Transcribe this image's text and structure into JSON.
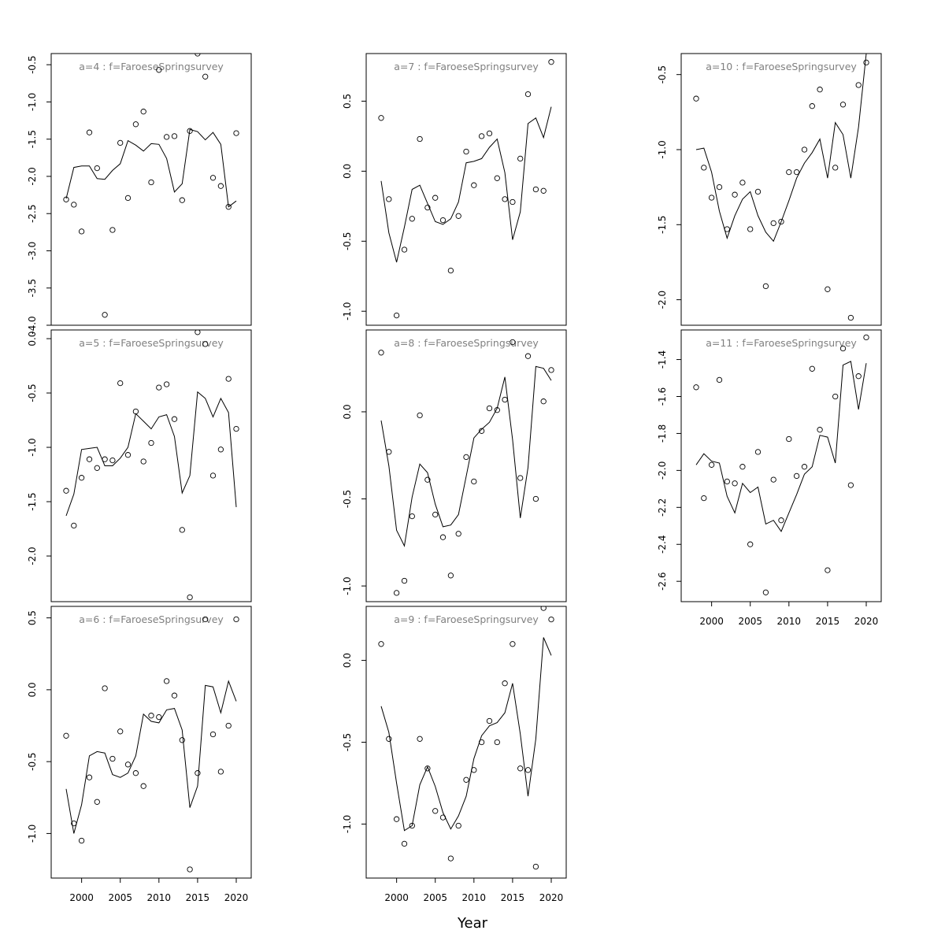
{
  "figure": {
    "xlabel": "Year"
  },
  "chart_data": [
    {
      "type": "line",
      "title": "a=4  :  f=FaroeseSpringsurvey",
      "xlim": [
        1998,
        2020
      ],
      "ylim": [
        -4.0,
        -0.35
      ],
      "xticks": [],
      "yticks": [
        -4.0,
        -3.5,
        -3.0,
        -2.5,
        -2.0,
        -1.5,
        -1.0,
        -0.5
      ],
      "x": [
        1998,
        1999,
        2000,
        2001,
        2002,
        2003,
        2004,
        2005,
        2006,
        2007,
        2008,
        2009,
        2010,
        2011,
        2012,
        2013,
        2014,
        2015,
        2016,
        2017,
        2018,
        2019,
        2020
      ],
      "fitted": [
        -2.3,
        -1.88,
        -1.86,
        -1.86,
        -2.03,
        -2.04,
        -1.92,
        -1.83,
        -1.52,
        -1.58,
        -1.66,
        -1.56,
        -1.57,
        -1.76,
        -2.21,
        -2.1,
        -1.37,
        -1.4,
        -1.51,
        -1.41,
        -1.57,
        -2.41,
        -2.33
      ],
      "observed": [
        -2.31,
        -2.38,
        -2.74,
        -1.41,
        -1.89,
        -3.86,
        -2.72,
        -1.55,
        -2.29,
        -1.3,
        -1.13,
        -2.08,
        -0.57,
        -1.47,
        -1.46,
        -2.32,
        -1.39,
        -0.35,
        -0.66,
        -2.02,
        -2.13,
        -2.41,
        -1.42
      ]
    },
    {
      "type": "line",
      "title": "a=5  :  f=FaroeseSpringsurvey",
      "xlim": [
        1998,
        2020
      ],
      "ylim": [
        -2.42,
        0.08
      ],
      "xticks": [],
      "yticks": [
        -2.0,
        -1.5,
        -1.0,
        -0.5,
        0.0
      ],
      "x": [
        1998,
        1999,
        2000,
        2001,
        2002,
        2003,
        2004,
        2005,
        2006,
        2007,
        2008,
        2009,
        2010,
        2011,
        2012,
        2013,
        2014,
        2015,
        2016,
        2017,
        2018,
        2019,
        2020
      ],
      "fitted": [
        -1.63,
        -1.43,
        -1.02,
        -1.01,
        -1.0,
        -1.17,
        -1.17,
        -1.1,
        -1.0,
        -0.69,
        -0.76,
        -0.83,
        -0.72,
        -0.7,
        -0.9,
        -1.42,
        -1.26,
        -0.49,
        -0.55,
        -0.72,
        -0.55,
        -0.68,
        -1.55
      ],
      "observed": [
        -1.4,
        -1.72,
        -1.28,
        -1.11,
        -1.19,
        -1.11,
        -1.12,
        -0.41,
        -1.07,
        -0.67,
        -1.13,
        -0.96,
        -0.45,
        -0.42,
        -0.74,
        -1.76,
        -2.38,
        0.06,
        -0.05,
        -1.26,
        -1.02,
        -0.37,
        -0.83
      ]
    },
    {
      "type": "line",
      "title": "a=6  :  f=FaroeseSpringsurvey",
      "xlim": [
        1998,
        2020
      ],
      "ylim": [
        -1.31,
        0.58
      ],
      "xticks": [
        2000,
        2005,
        2010,
        2015,
        2020
      ],
      "yticks": [
        -1.0,
        -0.5,
        0.0,
        0.5
      ],
      "x": [
        1998,
        1999,
        2000,
        2001,
        2002,
        2003,
        2004,
        2005,
        2006,
        2007,
        2008,
        2009,
        2010,
        2011,
        2012,
        2013,
        2014,
        2015,
        2016,
        2017,
        2018,
        2019,
        2020
      ],
      "fitted": [
        -0.69,
        -1.0,
        -0.8,
        -0.46,
        -0.43,
        -0.44,
        -0.59,
        -0.61,
        -0.58,
        -0.46,
        -0.17,
        -0.22,
        -0.23,
        -0.14,
        -0.13,
        -0.28,
        -0.82,
        -0.67,
        0.03,
        0.02,
        -0.16,
        0.06,
        -0.08
      ],
      "observed": [
        -0.32,
        -0.93,
        -1.05,
        -0.61,
        -0.78,
        0.01,
        -0.48,
        -0.29,
        -0.52,
        -0.58,
        -0.67,
        -0.18,
        -0.19,
        0.06,
        -0.04,
        -0.35,
        -1.25,
        -0.58,
        0.49,
        -0.31,
        -0.57,
        -0.25,
        0.49
      ]
    },
    {
      "type": "line",
      "title": "a=7  :  f=FaroeseSpringsurvey",
      "xlim": [
        1998,
        2020
      ],
      "ylim": [
        -1.1,
        0.84
      ],
      "xticks": [],
      "yticks": [
        -1.0,
        -0.5,
        0.0,
        0.5
      ],
      "x": [
        1998,
        1999,
        2000,
        2001,
        2002,
        2003,
        2004,
        2005,
        2006,
        2007,
        2008,
        2009,
        2010,
        2011,
        2012,
        2013,
        2014,
        2015,
        2016,
        2017,
        2018,
        2019,
        2020
      ],
      "fitted": [
        -0.07,
        -0.44,
        -0.65,
        -0.4,
        -0.13,
        -0.1,
        -0.23,
        -0.36,
        -0.38,
        -0.34,
        -0.22,
        0.06,
        0.07,
        0.09,
        0.17,
        0.23,
        -0.01,
        -0.49,
        -0.29,
        0.34,
        0.38,
        0.24,
        0.46
      ],
      "observed": [
        0.38,
        -0.2,
        -1.03,
        -0.56,
        -0.34,
        0.23,
        -0.26,
        -0.19,
        -0.35,
        -0.71,
        -0.32,
        0.14,
        -0.1,
        0.25,
        0.27,
        -0.05,
        -0.2,
        -0.22,
        0.09,
        0.55,
        -0.13,
        -0.14,
        0.78
      ]
    },
    {
      "type": "line",
      "title": "a=8  :  f=FaroeseSpringsurvey",
      "xlim": [
        1998,
        2020
      ],
      "ylim": [
        -1.09,
        0.47
      ],
      "xticks": [],
      "yticks": [
        -1.0,
        -0.5,
        0.0
      ],
      "x": [
        1998,
        1999,
        2000,
        2001,
        2002,
        2003,
        2004,
        2005,
        2006,
        2007,
        2008,
        2009,
        2010,
        2011,
        2012,
        2013,
        2014,
        2015,
        2016,
        2017,
        2018,
        2019,
        2020
      ],
      "fitted": [
        -0.05,
        -0.31,
        -0.68,
        -0.77,
        -0.49,
        -0.3,
        -0.35,
        -0.53,
        -0.66,
        -0.65,
        -0.59,
        -0.37,
        -0.15,
        -0.1,
        -0.06,
        0.02,
        0.2,
        -0.16,
        -0.61,
        -0.32,
        0.26,
        0.25,
        0.18
      ],
      "observed": [
        0.34,
        -0.23,
        -1.04,
        -0.97,
        -0.6,
        -0.02,
        -0.39,
        -0.59,
        -0.72,
        -0.94,
        -0.7,
        -0.26,
        -0.4,
        -0.11,
        0.02,
        0.01,
        0.07,
        0.4,
        -0.38,
        0.32,
        -0.5,
        0.06,
        0.24
      ]
    },
    {
      "type": "line",
      "title": "a=9  :  f=FaroeseSpringsurvey",
      "xlim": [
        1998,
        2020
      ],
      "ylim": [
        -1.33,
        0.33
      ],
      "xticks": [
        2000,
        2005,
        2010,
        2015,
        2020
      ],
      "yticks": [
        -1.0,
        -0.5,
        0.0
      ],
      "x": [
        1998,
        1999,
        2000,
        2001,
        2002,
        2003,
        2004,
        2005,
        2006,
        2007,
        2008,
        2009,
        2010,
        2011,
        2012,
        2013,
        2014,
        2015,
        2016,
        2017,
        2018,
        2019,
        2020
      ],
      "fitted": [
        -0.28,
        -0.44,
        -0.75,
        -1.04,
        -1.01,
        -0.76,
        -0.65,
        -0.77,
        -0.93,
        -1.03,
        -0.95,
        -0.83,
        -0.6,
        -0.46,
        -0.4,
        -0.38,
        -0.32,
        -0.14,
        -0.45,
        -0.83,
        -0.48,
        0.14,
        0.03
      ],
      "observed": [
        0.1,
        -0.48,
        -0.97,
        -1.12,
        -1.01,
        -0.48,
        -0.66,
        -0.92,
        -0.96,
        -1.21,
        -1.01,
        -0.73,
        -0.67,
        -0.5,
        -0.37,
        -0.5,
        -0.14,
        0.1,
        -0.66,
        -0.67,
        -1.26,
        0.32,
        0.25
      ]
    },
    {
      "type": "line",
      "title": "a=10  :  f=FaroeseSpringsurvey",
      "xlim": [
        1998,
        2020
      ],
      "ylim": [
        -2.17,
        -0.36
      ],
      "xticks": [],
      "yticks": [
        -2.0,
        -1.5,
        -1.0,
        -0.5
      ],
      "x": [
        1998,
        1999,
        2000,
        2001,
        2002,
        2003,
        2004,
        2005,
        2006,
        2007,
        2008,
        2009,
        2010,
        2011,
        2012,
        2013,
        2014,
        2015,
        2016,
        2017,
        2018,
        2019,
        2020
      ],
      "fitted": [
        -1.0,
        -0.99,
        -1.15,
        -1.41,
        -1.59,
        -1.44,
        -1.33,
        -1.28,
        -1.44,
        -1.55,
        -1.61,
        -1.48,
        -1.34,
        -1.19,
        -1.09,
        -1.02,
        -0.93,
        -1.19,
        -0.82,
        -0.9,
        -1.19,
        -0.85,
        -0.36
      ],
      "observed": [
        -0.66,
        -1.12,
        -1.32,
        -1.25,
        -1.53,
        -1.3,
        -1.22,
        -1.53,
        -1.28,
        -1.91,
        -1.49,
        -1.48,
        -1.15,
        -1.15,
        -1.0,
        -0.71,
        -0.6,
        -1.93,
        -1.12,
        -0.7,
        -2.12,
        -0.57,
        -0.42
      ]
    },
    {
      "type": "line",
      "title": "a=11  :  f=FaroeseSpringsurvey",
      "xlim": [
        1998,
        2020
      ],
      "ylim": [
        -2.71,
        -1.24
      ],
      "xticks": [
        2000,
        2005,
        2010,
        2015,
        2020
      ],
      "yticks": [
        -2.6,
        -2.4,
        -2.2,
        -2.0,
        -1.8,
        -1.6,
        -1.4
      ],
      "x": [
        1998,
        1999,
        2000,
        2001,
        2002,
        2003,
        2004,
        2005,
        2006,
        2007,
        2008,
        2009,
        2010,
        2011,
        2012,
        2013,
        2014,
        2015,
        2016,
        2017,
        2018,
        2019,
        2020
      ],
      "fitted": [
        -1.97,
        -1.91,
        -1.95,
        -1.96,
        -2.14,
        -2.23,
        -2.07,
        -2.12,
        -2.09,
        -2.29,
        -2.27,
        -2.33,
        -2.23,
        -2.13,
        -2.02,
        -1.98,
        -1.81,
        -1.82,
        -1.96,
        -1.43,
        -1.41,
        -1.67,
        -1.42
      ],
      "observed": [
        -1.55,
        -2.15,
        -1.97,
        -1.51,
        -2.06,
        -2.07,
        -1.98,
        -2.4,
        -1.9,
        -2.66,
        -2.05,
        -2.27,
        -1.83,
        -2.03,
        -1.98,
        -1.45,
        -1.78,
        -2.54,
        -1.6,
        -1.34,
        -2.08,
        -1.49,
        -1.28
      ]
    }
  ]
}
